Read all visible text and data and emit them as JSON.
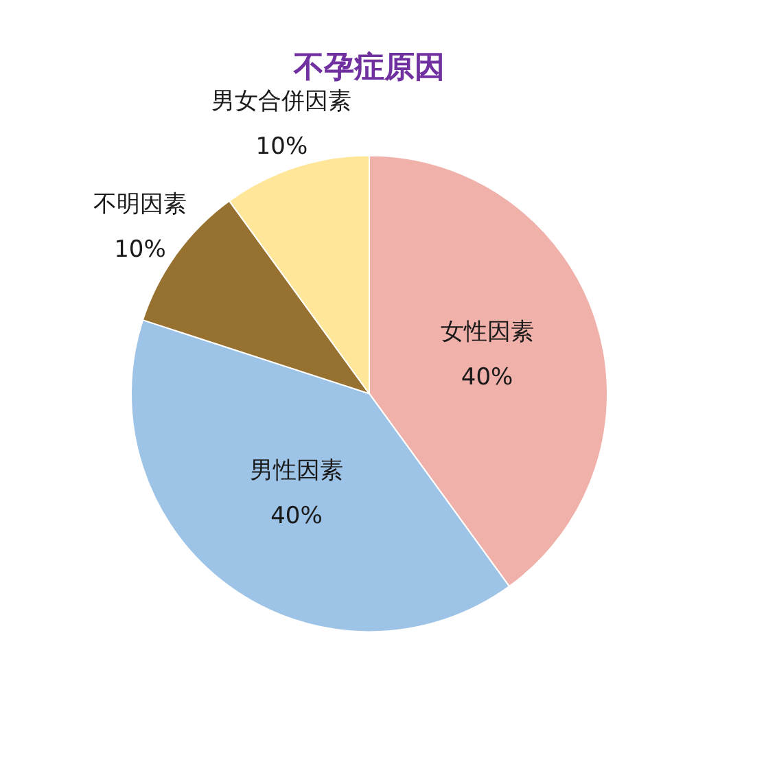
{
  "chart_data": {
    "type": "pie",
    "title": "不孕症原因",
    "categories": [
      "女性因素",
      "男性因素",
      "不明因素",
      "男女合併因素"
    ],
    "values": [
      40,
      40,
      10,
      10
    ],
    "colors": [
      "#f0b1aa",
      "#9dc3e6",
      "#97712f",
      "#ffe699"
    ],
    "value_labels": [
      "40%",
      "40%",
      "10%",
      "10%"
    ],
    "legend": false
  }
}
